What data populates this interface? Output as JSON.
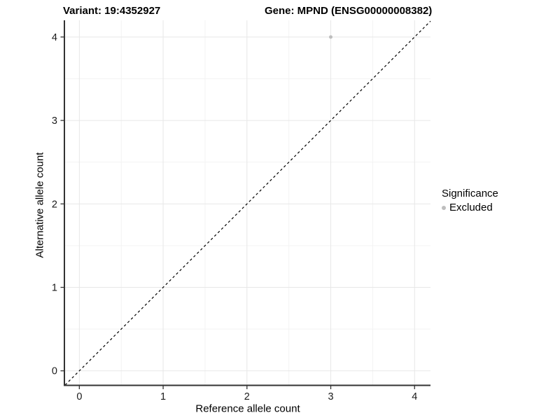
{
  "chart_data": {
    "type": "scatter",
    "title_left": "Variant: 19:4352927",
    "title_right": "Gene: MPND (ENSG00000008382)",
    "xlabel": "Reference allele count",
    "ylabel": "Alternative allele count",
    "x_ticks": [
      0,
      1,
      2,
      3,
      4
    ],
    "y_ticks": [
      0,
      1,
      2,
      3,
      4
    ],
    "x_minor_gridlines": [
      0.5,
      1.5,
      2.5,
      3.5
    ],
    "y_minor_gridlines": [
      0.5,
      1.5,
      2.5,
      3.5
    ],
    "xlim": [
      -0.17,
      4.19
    ],
    "ylim": [
      -0.17,
      4.2
    ],
    "grid": true,
    "legend": {
      "title": "Significance",
      "position": "right",
      "items": [
        {
          "label": "Excluded",
          "color": "#bebebe"
        }
      ]
    },
    "series": [
      {
        "name": "Excluded",
        "color": "#bebebe",
        "marker_size": 5,
        "points": [
          {
            "x": 3,
            "y": 4
          }
        ]
      }
    ],
    "reference_line": {
      "slope": 1,
      "intercept": 0,
      "style": "dashed",
      "color": "#000000"
    },
    "colors": {
      "grid_major": "#e7e7e7",
      "grid_minor": "#f3f3f3",
      "axis_line": "#333333",
      "tick": "#333333",
      "tick_label": "#1a1a1a",
      "text": "#000000"
    }
  }
}
